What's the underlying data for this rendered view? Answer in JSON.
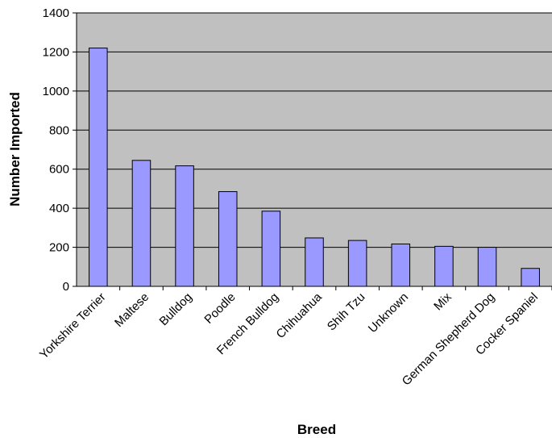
{
  "chart_data": {
    "type": "bar",
    "title": "",
    "xlabel": "Breed",
    "ylabel": "Number Imported",
    "ylim": [
      0,
      1400
    ],
    "yticks": [
      0,
      200,
      400,
      600,
      800,
      1000,
      1200,
      1400
    ],
    "grid": true,
    "legend": "none",
    "categories": [
      "Yorkshire Terrier",
      "Maltese",
      "Bulldog",
      "Poodle",
      "French Bulldog",
      "Chihuahua",
      "Shih Tzu",
      "Unknown",
      "Mix",
      "German Shepherd Dog",
      "Cocker Spaniel"
    ],
    "values": [
      1220,
      645,
      617,
      485,
      385,
      248,
      235,
      217,
      205,
      200,
      92
    ],
    "colors": {
      "plot_background": "#c0c0c0",
      "bar_fill": "#9999ff",
      "bar_stroke": "#000000",
      "gridline": "#000000"
    }
  }
}
